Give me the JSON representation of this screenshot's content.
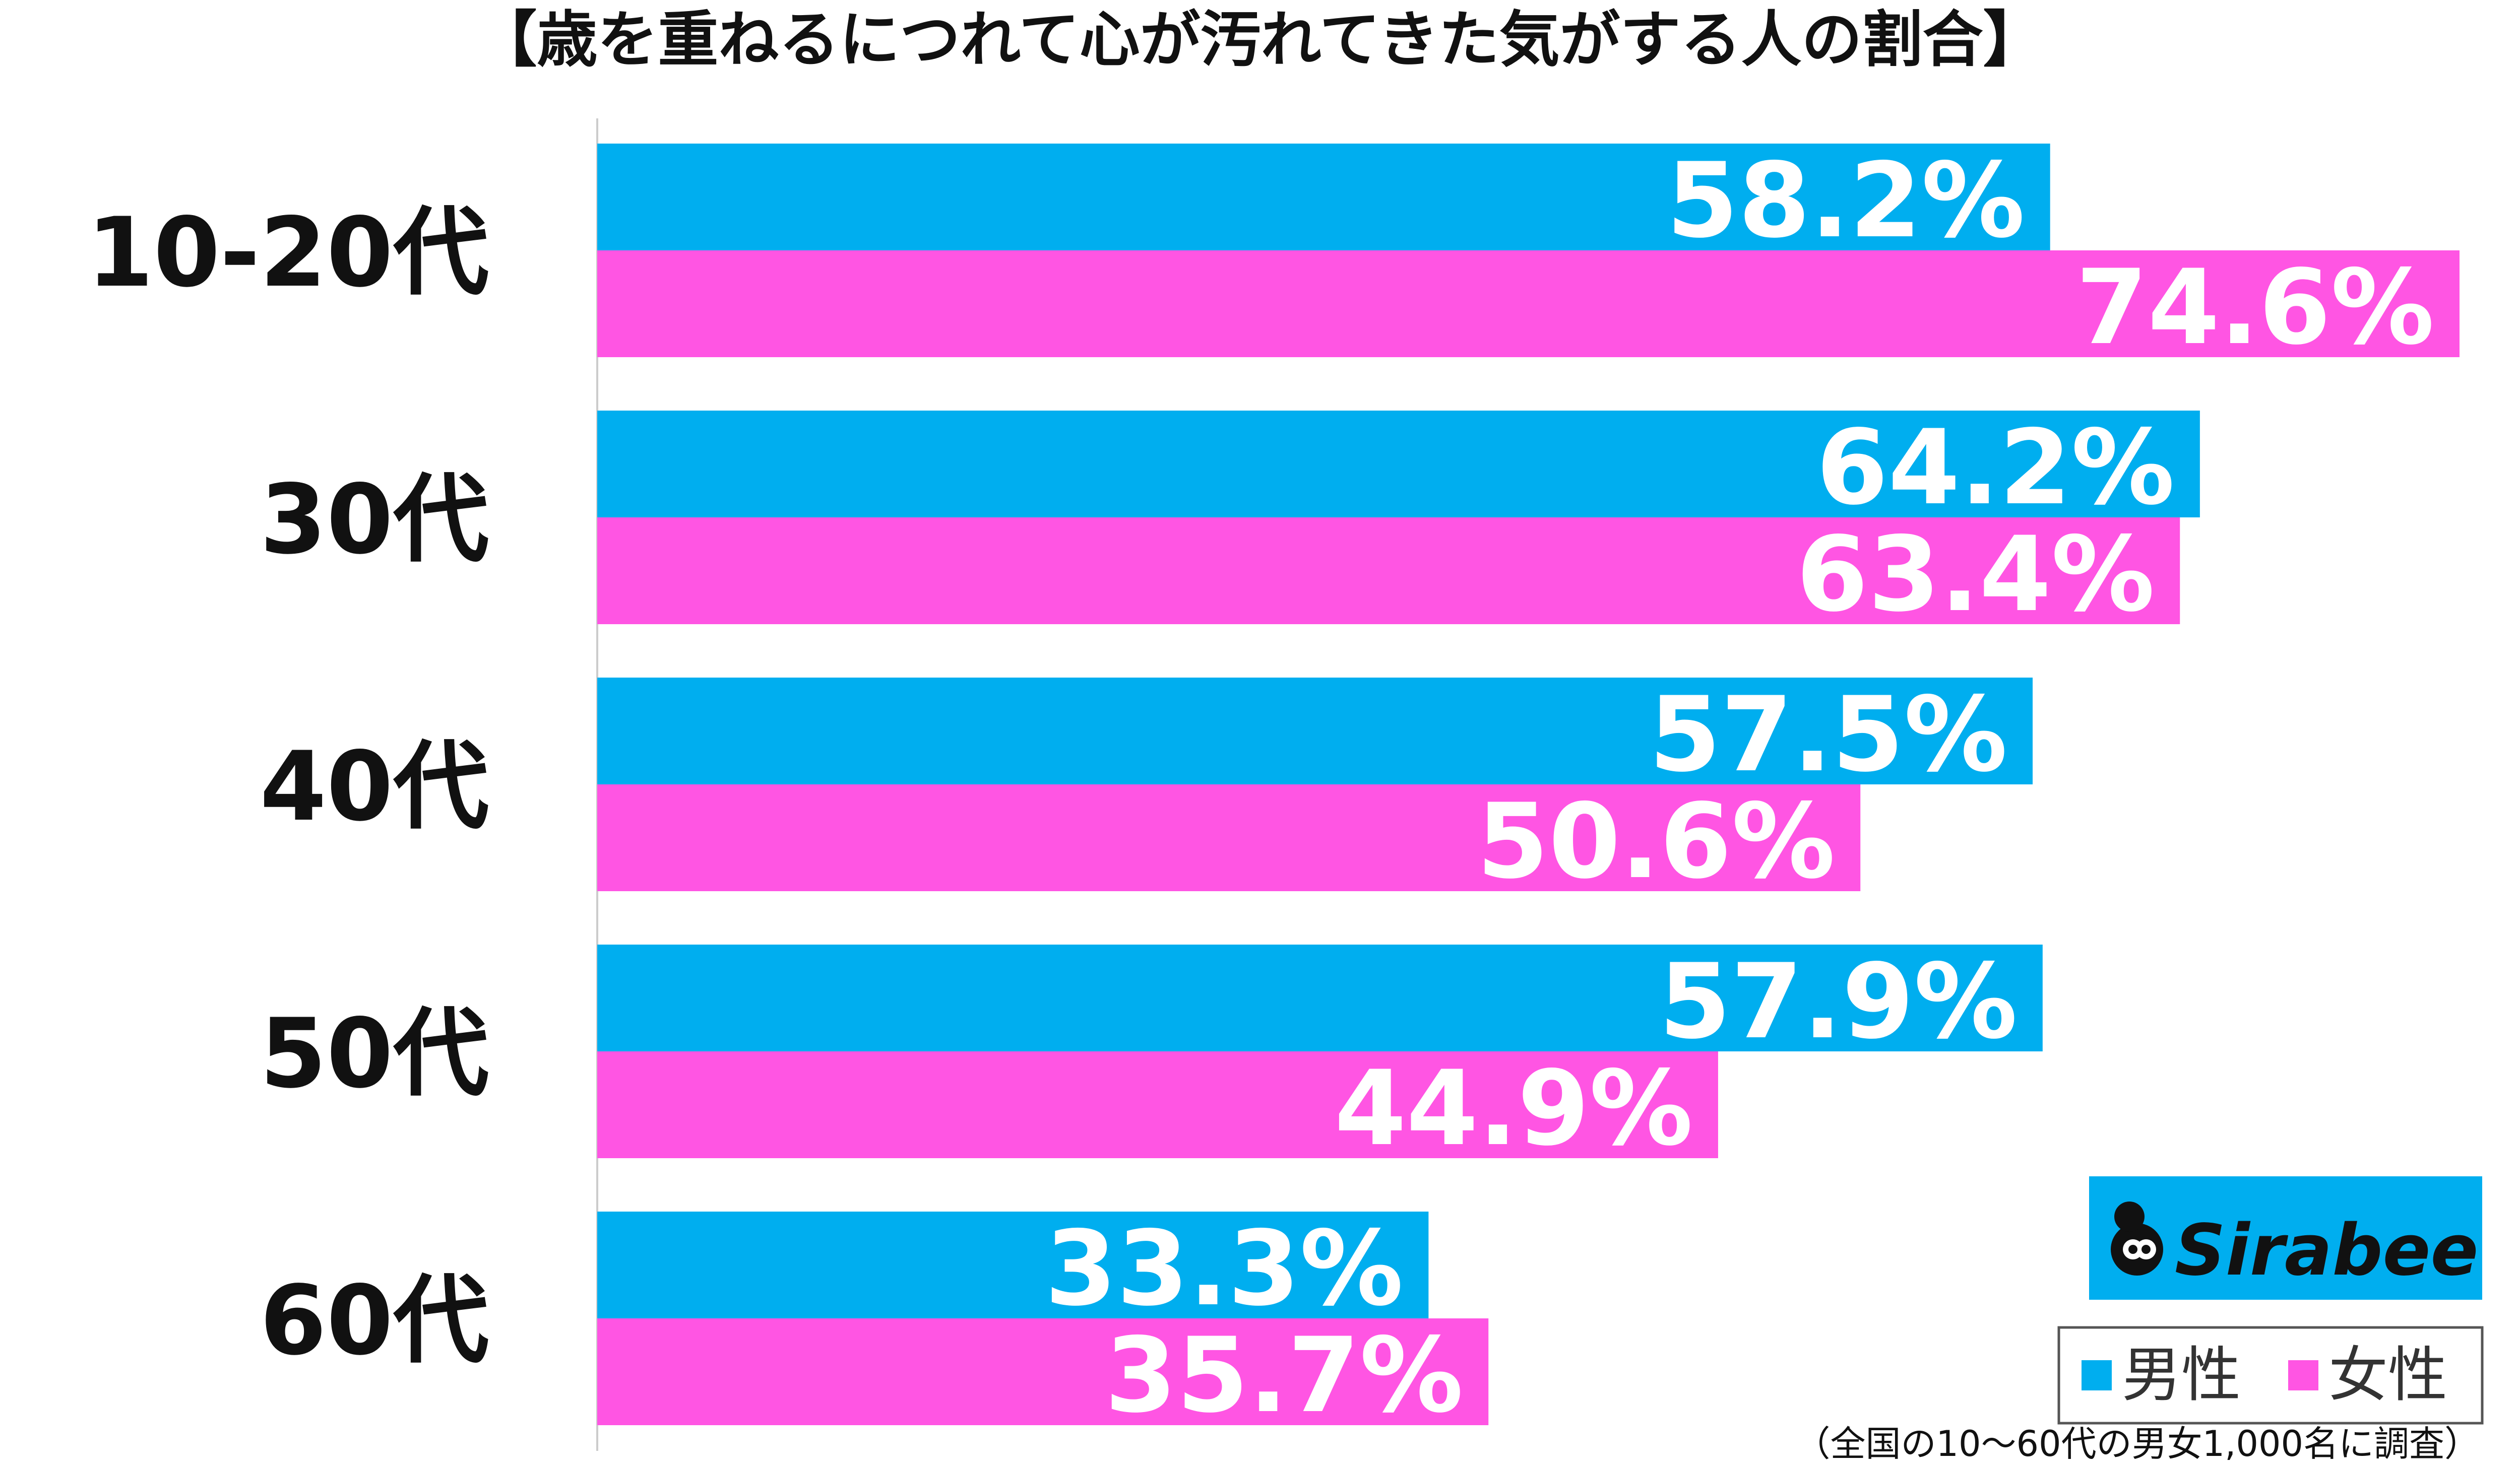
{
  "chart_data": {
    "type": "bar",
    "orientation": "horizontal",
    "title": "【歳を重ねるにつれて心が汚れてきた気がする人の割合】",
    "categories": [
      "10-20代",
      "30代",
      "40代",
      "50代",
      "60代"
    ],
    "series": [
      {
        "name": "男性",
        "color": "#00aeef",
        "values": [
          58.2,
          64.2,
          57.5,
          57.9,
          33.3
        ],
        "labels": [
          "58.2%",
          "64.2%",
          "57.5%",
          "57.9%",
          "33.3%"
        ]
      },
      {
        "name": "女性",
        "color": "#ff55e3",
        "values": [
          74.6,
          63.4,
          50.6,
          44.9,
          35.7
        ],
        "labels": [
          "74.6%",
          "63.4%",
          "50.6%",
          "44.9%",
          "35.7%"
        ]
      }
    ],
    "xlim": [
      0,
      100
    ],
    "unit": "%",
    "grid": false,
    "legend_position": "bottom-right"
  },
  "logo": {
    "text": "Sirabee",
    "background": "#00aeef"
  },
  "note": "（全国の10〜60代の男女1,000名に調査）"
}
